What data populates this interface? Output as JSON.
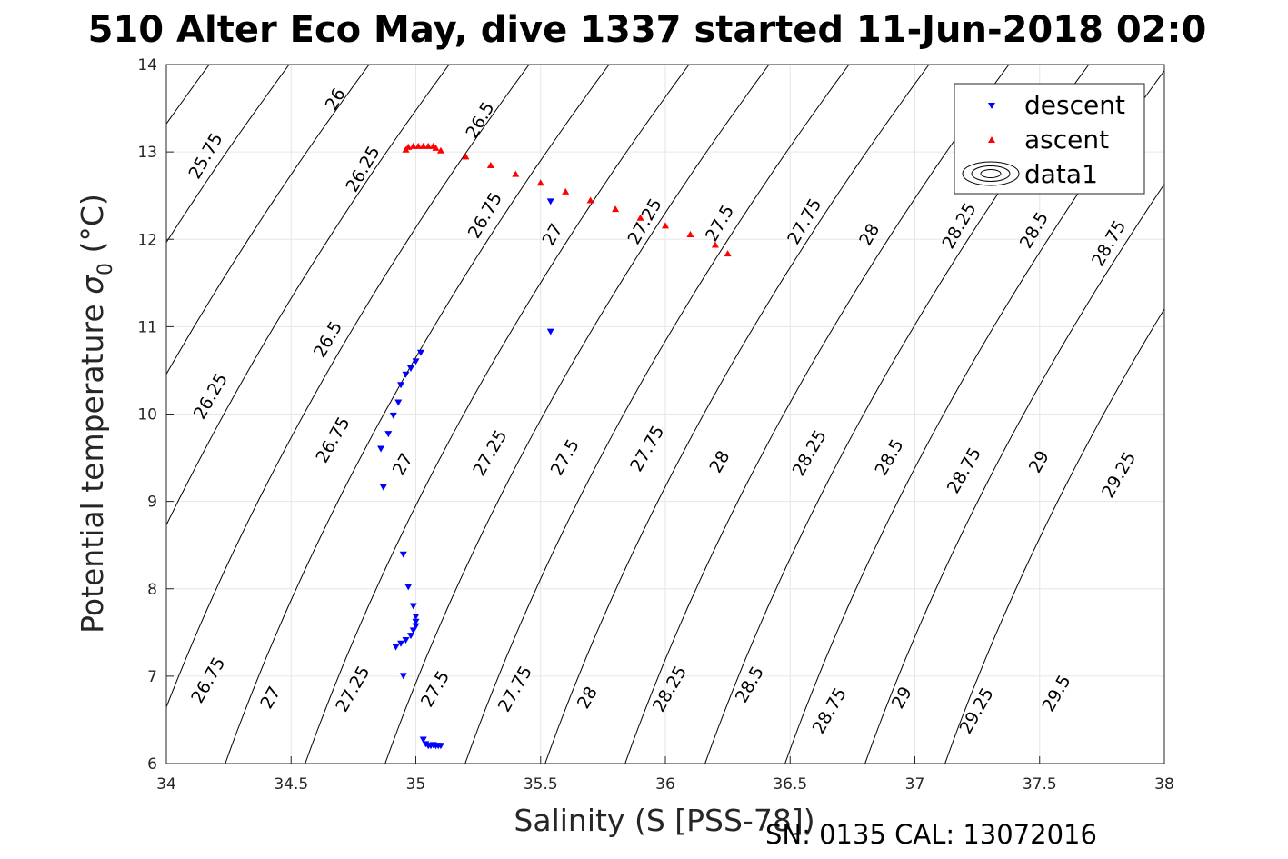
{
  "chart_data": {
    "type": "scatter",
    "title": "510 Alter Eco May, dive 1337 started 11-Jun-2018 02:0",
    "xlabel": "Salinity (S [PSS-78])",
    "ylabel": "Potential temperature",
    "ylabel_symbol": "σ",
    "ylabel_sub": "0",
    "ylabel_unit": "(°C)",
    "footer": "SN: 0135  CAL: 13072016",
    "xlim": [
      34,
      38
    ],
    "ylim": [
      6,
      14
    ],
    "x_ticks": [
      "34",
      "34.5",
      "35",
      "35.5",
      "36",
      "36.5",
      "37",
      "37.5",
      "38"
    ],
    "y_ticks": [
      "6",
      "7",
      "8",
      "9",
      "10",
      "11",
      "12",
      "13",
      "14"
    ],
    "grid": true,
    "legend_position": "top-right",
    "legend": [
      "descent",
      "ascent",
      "data1"
    ],
    "colors": {
      "descent": "#0000ff",
      "ascent": "#ff0000",
      "contour": "#000000",
      "grid": "#e6e6e6",
      "axis": "#262626"
    },
    "contours": {
      "levels": [
        25.75,
        26,
        26.25,
        26.5,
        26.75,
        27,
        27.25,
        27.5,
        27.75,
        28,
        28.25,
        28.5,
        28.75,
        29,
        29.25,
        29.5
      ],
      "labels": [
        {
          "text": "25.75",
          "x": 34.16,
          "y": 12.95
        },
        {
          "text": "26",
          "x": 34.68,
          "y": 13.6
        },
        {
          "text": "26.25",
          "x": 34.79,
          "y": 12.8
        },
        {
          "text": "26.5",
          "x": 35.26,
          "y": 13.36
        },
        {
          "text": "26.75",
          "x": 35.28,
          "y": 12.27
        },
        {
          "text": "27",
          "x": 35.55,
          "y": 12.05
        },
        {
          "text": "27.25",
          "x": 35.92,
          "y": 12.2
        },
        {
          "text": "27.5",
          "x": 36.22,
          "y": 12.18
        },
        {
          "text": "27.75",
          "x": 36.56,
          "y": 12.2
        },
        {
          "text": "28",
          "x": 36.82,
          "y": 12.05
        },
        {
          "text": "28.25",
          "x": 37.18,
          "y": 12.15
        },
        {
          "text": "28.5",
          "x": 37.48,
          "y": 12.1
        },
        {
          "text": "28.75",
          "x": 37.78,
          "y": 11.95
        },
        {
          "text": "26.5",
          "x": 34.65,
          "y": 10.85
        },
        {
          "text": "26.25",
          "x": 34.18,
          "y": 10.2
        },
        {
          "text": "26.75",
          "x": 34.67,
          "y": 9.7
        },
        {
          "text": "27",
          "x": 34.95,
          "y": 9.42
        },
        {
          "text": "27.25",
          "x": 35.3,
          "y": 9.55
        },
        {
          "text": "27.5",
          "x": 35.6,
          "y": 9.5
        },
        {
          "text": "27.75",
          "x": 35.93,
          "y": 9.6
        },
        {
          "text": "28",
          "x": 36.22,
          "y": 9.45
        },
        {
          "text": "28.25",
          "x": 36.58,
          "y": 9.55
        },
        {
          "text": "28.5",
          "x": 36.9,
          "y": 9.5
        },
        {
          "text": "28.75",
          "x": 37.2,
          "y": 9.35
        },
        {
          "text": "29",
          "x": 37.5,
          "y": 9.45
        },
        {
          "text": "29.25",
          "x": 37.82,
          "y": 9.3
        },
        {
          "text": "26.75",
          "x": 34.17,
          "y": 6.95
        },
        {
          "text": "27",
          "x": 34.42,
          "y": 6.75
        },
        {
          "text": "27.25",
          "x": 34.75,
          "y": 6.85
        },
        {
          "text": "27.5",
          "x": 35.08,
          "y": 6.85
        },
        {
          "text": "27.75",
          "x": 35.4,
          "y": 6.85
        },
        {
          "text": "28",
          "x": 35.69,
          "y": 6.75
        },
        {
          "text": "28.25",
          "x": 36.02,
          "y": 6.85
        },
        {
          "text": "28.5",
          "x": 36.34,
          "y": 6.9
        },
        {
          "text": "28.75",
          "x": 36.66,
          "y": 6.6
        },
        {
          "text": "29",
          "x": 36.95,
          "y": 6.75
        },
        {
          "text": "29.25",
          "x": 37.25,
          "y": 6.6
        },
        {
          "text": "29.5",
          "x": 37.57,
          "y": 6.8
        }
      ]
    },
    "series": [
      {
        "name": "descent",
        "marker": "triangle-down",
        "points": [
          [
            35.54,
            12.43
          ],
          [
            35.54,
            10.94
          ],
          [
            35.02,
            10.7
          ],
          [
            35.0,
            10.6
          ],
          [
            34.98,
            10.52
          ],
          [
            34.96,
            10.45
          ],
          [
            34.94,
            10.33
          ],
          [
            34.93,
            10.13
          ],
          [
            34.91,
            9.98
          ],
          [
            34.89,
            9.77
          ],
          [
            34.86,
            9.6
          ],
          [
            34.87,
            9.16
          ],
          [
            34.95,
            8.39
          ],
          [
            34.97,
            8.02
          ],
          [
            34.99,
            7.8
          ],
          [
            35.0,
            7.68
          ],
          [
            35.0,
            7.62
          ],
          [
            35.0,
            7.57
          ],
          [
            34.99,
            7.52
          ],
          [
            34.98,
            7.46
          ],
          [
            34.96,
            7.41
          ],
          [
            34.94,
            7.37
          ],
          [
            34.92,
            7.33
          ],
          [
            34.95,
            7.0
          ],
          [
            35.03,
            6.27
          ],
          [
            35.04,
            6.22
          ],
          [
            35.05,
            6.2
          ],
          [
            35.06,
            6.2
          ],
          [
            35.07,
            6.21
          ],
          [
            35.08,
            6.2
          ],
          [
            35.09,
            6.2
          ],
          [
            35.1,
            6.2
          ]
        ]
      },
      {
        "name": "ascent",
        "marker": "triangle-up",
        "points": [
          [
            34.96,
            13.03
          ],
          [
            34.97,
            13.06
          ],
          [
            34.99,
            13.07
          ],
          [
            35.01,
            13.07
          ],
          [
            35.03,
            13.07
          ],
          [
            35.05,
            13.07
          ],
          [
            35.07,
            13.07
          ],
          [
            35.08,
            13.05
          ],
          [
            35.1,
            13.02
          ],
          [
            35.2,
            12.95
          ],
          [
            35.3,
            12.85
          ],
          [
            35.4,
            12.75
          ],
          [
            35.5,
            12.65
          ],
          [
            35.6,
            12.55
          ],
          [
            35.7,
            12.45
          ],
          [
            35.8,
            12.35
          ],
          [
            35.9,
            12.25
          ],
          [
            36.0,
            12.16
          ],
          [
            36.1,
            12.06
          ],
          [
            36.2,
            11.94
          ],
          [
            36.25,
            11.84
          ]
        ]
      }
    ]
  }
}
